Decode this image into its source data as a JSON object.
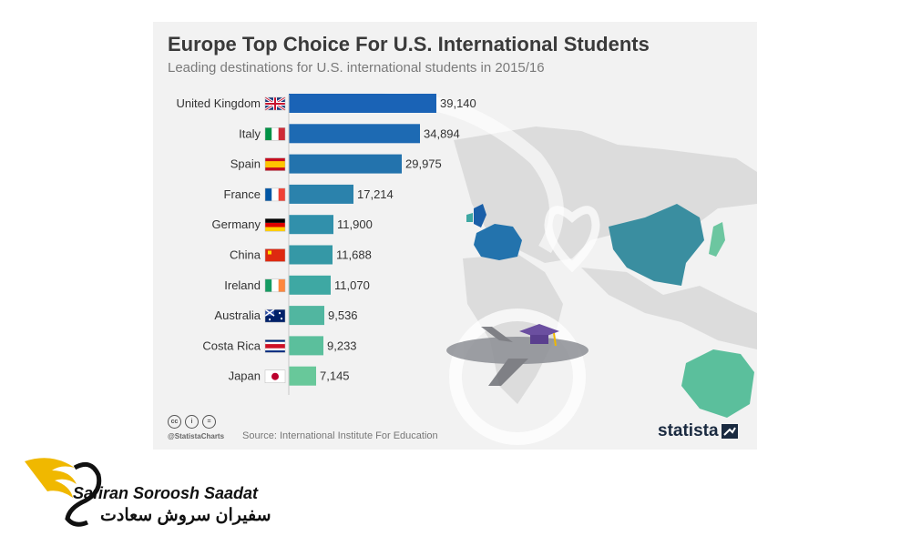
{
  "chart_data": {
    "type": "bar",
    "orientation": "horizontal",
    "title": "Europe Top Choice For U.S. International Students",
    "subtitle": "Leading destinations for U.S. international students in 2015/16",
    "categories": [
      "United Kingdom",
      "Italy",
      "Spain",
      "France",
      "Germany",
      "China",
      "Ireland",
      "Australia",
      "Costa Rica",
      "Japan"
    ],
    "values": [
      39140,
      34894,
      29975,
      17214,
      11900,
      11688,
      11070,
      9536,
      9233,
      7145
    ],
    "value_labels": [
      "39,140",
      "34,894",
      "29,975",
      "17,214",
      "11,900",
      "11,688",
      "11,070",
      "9,536",
      "9,233",
      "7,145"
    ],
    "bar_colors": [
      "#1a63b6",
      "#1d6ab3",
      "#2373ad",
      "#2b82ac",
      "#3190ab",
      "#3598a6",
      "#3ea8a3",
      "#51b6a0",
      "#5bbf9c",
      "#68c89a"
    ],
    "xlim": [
      0,
      39140
    ],
    "grid": false,
    "legend": "none"
  },
  "footer": {
    "handle": "@StatistaCharts",
    "source": "Source: International Institute For Education",
    "brand": "statista"
  },
  "watermark": {
    "name_en": "Safiran Soroosh Saadat",
    "name_fa": "سفیران سروش سعادت"
  },
  "colors": {
    "map_land": "#dcdcdc",
    "map_highlight_blue": "#1a5fa8",
    "map_highlight_teal": "#3a8ea0",
    "map_highlight_green": "#6cc6a0",
    "accent_gold": "#f0b800"
  }
}
